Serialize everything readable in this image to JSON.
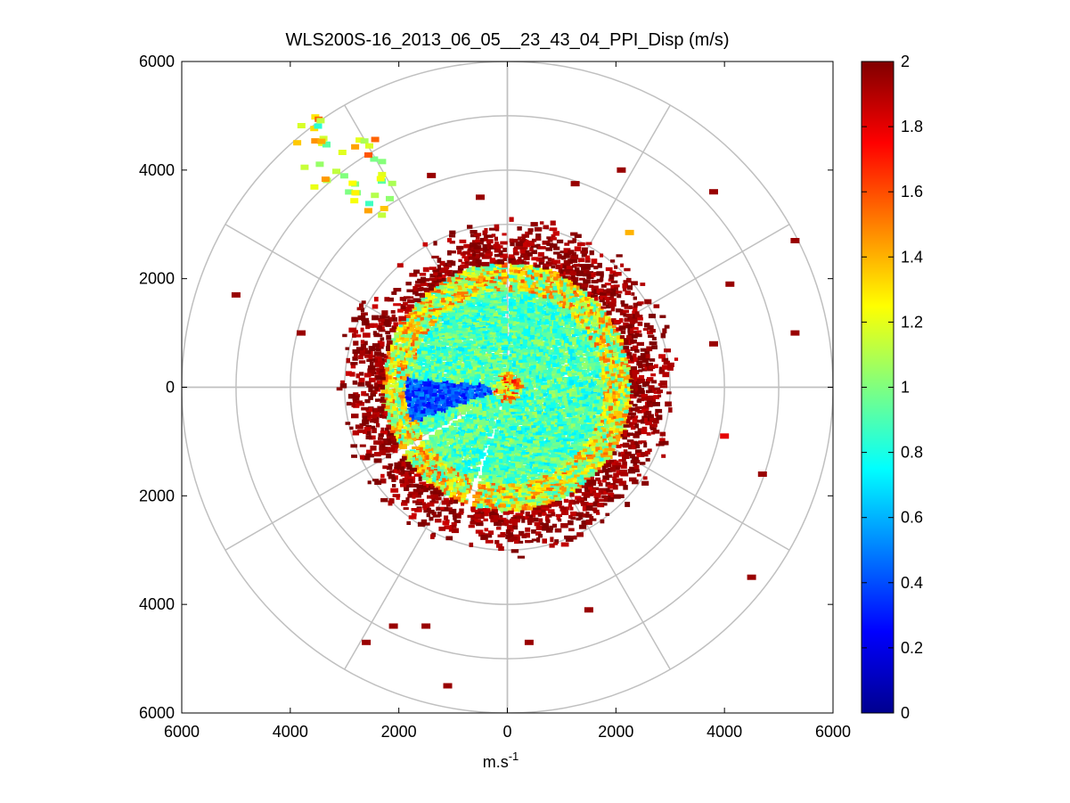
{
  "chart_data": {
    "type": "heatmap",
    "subtype": "polar-ppi-scan",
    "title": "WLS200S-16_2013_06_05__23_43_04_PPI_Disp (m/s)",
    "xlabel": "m.s",
    "xlabel_superscript": "-1",
    "ylabel": "",
    "xlim": [
      -6000,
      6000
    ],
    "ylim": [
      -6000,
      6000
    ],
    "x_tick_values": [
      -6000,
      -4000,
      -2000,
      0,
      2000,
      4000,
      6000
    ],
    "x_tick_labels": [
      "6000",
      "4000",
      "2000",
      "0",
      "2000",
      "4000",
      "6000"
    ],
    "y_tick_values": [
      6000,
      4000,
      2000,
      0,
      -2000,
      -4000,
      -6000
    ],
    "y_tick_labels": [
      "6000",
      "4000",
      "2000",
      "0",
      "2000",
      "4000",
      "6000"
    ],
    "polar_grid": {
      "range_rings": [
        1000,
        2000,
        3000,
        4000,
        5000,
        6000
      ],
      "spoke_angles_deg": [
        0,
        30,
        60,
        90,
        120,
        150,
        180,
        210,
        240,
        270,
        300,
        330
      ]
    },
    "grid": true,
    "colormap": "jet",
    "colorbar": {
      "min": 0,
      "max": 2,
      "placement": "right",
      "tick_values": [
        0,
        0.2,
        0.4,
        0.6,
        0.8,
        1,
        1.2,
        1.4,
        1.6,
        1.8,
        2
      ],
      "tick_labels": [
        "0",
        "0.2",
        "0.4",
        "0.6",
        "0.8",
        "1",
        "1.2",
        "1.4",
        "1.6",
        "1.8",
        "2"
      ]
    },
    "radial_profile": [
      {
        "range": [
          0,
          1800
        ],
        "value_typical": 0.9,
        "spread": 0.2
      },
      {
        "range": [
          1800,
          2300
        ],
        "value_typical": 1.2,
        "spread": 0.4
      },
      {
        "range": [
          2300,
          3000
        ],
        "value_typical": 1.95,
        "spread": 0.1
      }
    ],
    "low_value_sector": {
      "azimuth_range_deg": [
        250,
        275
      ],
      "range": [
        200,
        1900
      ],
      "value": 0.4
    },
    "gap_sectors_deg": [
      [
        -1,
        1
      ],
      [
        196,
        200
      ],
      [
        237,
        240
      ]
    ],
    "clutter_points": [
      {
        "x": 2100,
        "y": 4000,
        "value": 1.95
      },
      {
        "x": 1250,
        "y": 3750,
        "value": 1.95
      },
      {
        "x": 2250,
        "y": 2850,
        "value": 1.4
      },
      {
        "x": 3800,
        "y": 3600,
        "value": 1.95
      },
      {
        "x": 5300,
        "y": 2700,
        "value": 1.95
      },
      {
        "x": 4100,
        "y": 1900,
        "value": 1.95
      },
      {
        "x": 5300,
        "y": 1000,
        "value": 1.95
      },
      {
        "x": 3800,
        "y": 800,
        "value": 1.95
      },
      {
        "x": 4000,
        "y": -900,
        "value": 1.8
      },
      {
        "x": 4700,
        "y": -1600,
        "value": 1.95
      },
      {
        "x": 4500,
        "y": -3500,
        "value": 1.95
      },
      {
        "x": 1500,
        "y": -4100,
        "value": 1.95
      },
      {
        "x": 400,
        "y": -4700,
        "value": 1.95
      },
      {
        "x": -1100,
        "y": -5500,
        "value": 1.95
      },
      {
        "x": -1500,
        "y": -4400,
        "value": 1.95
      },
      {
        "x": -2100,
        "y": -4400,
        "value": 1.95
      },
      {
        "x": -2600,
        "y": -4700,
        "value": 1.95
      },
      {
        "x": -5000,
        "y": 1700,
        "value": 1.95
      },
      {
        "x": -3800,
        "y": 1000,
        "value": 1.95
      },
      {
        "x": -1400,
        "y": 3900,
        "value": 1.95
      },
      {
        "x": -500,
        "y": 3500,
        "value": 1.95
      }
    ],
    "far_cluster": {
      "center": [
        -3000,
        4100
      ],
      "extent": [
        900,
        700
      ],
      "value_typical": 1.2,
      "spread": 0.4
    }
  }
}
